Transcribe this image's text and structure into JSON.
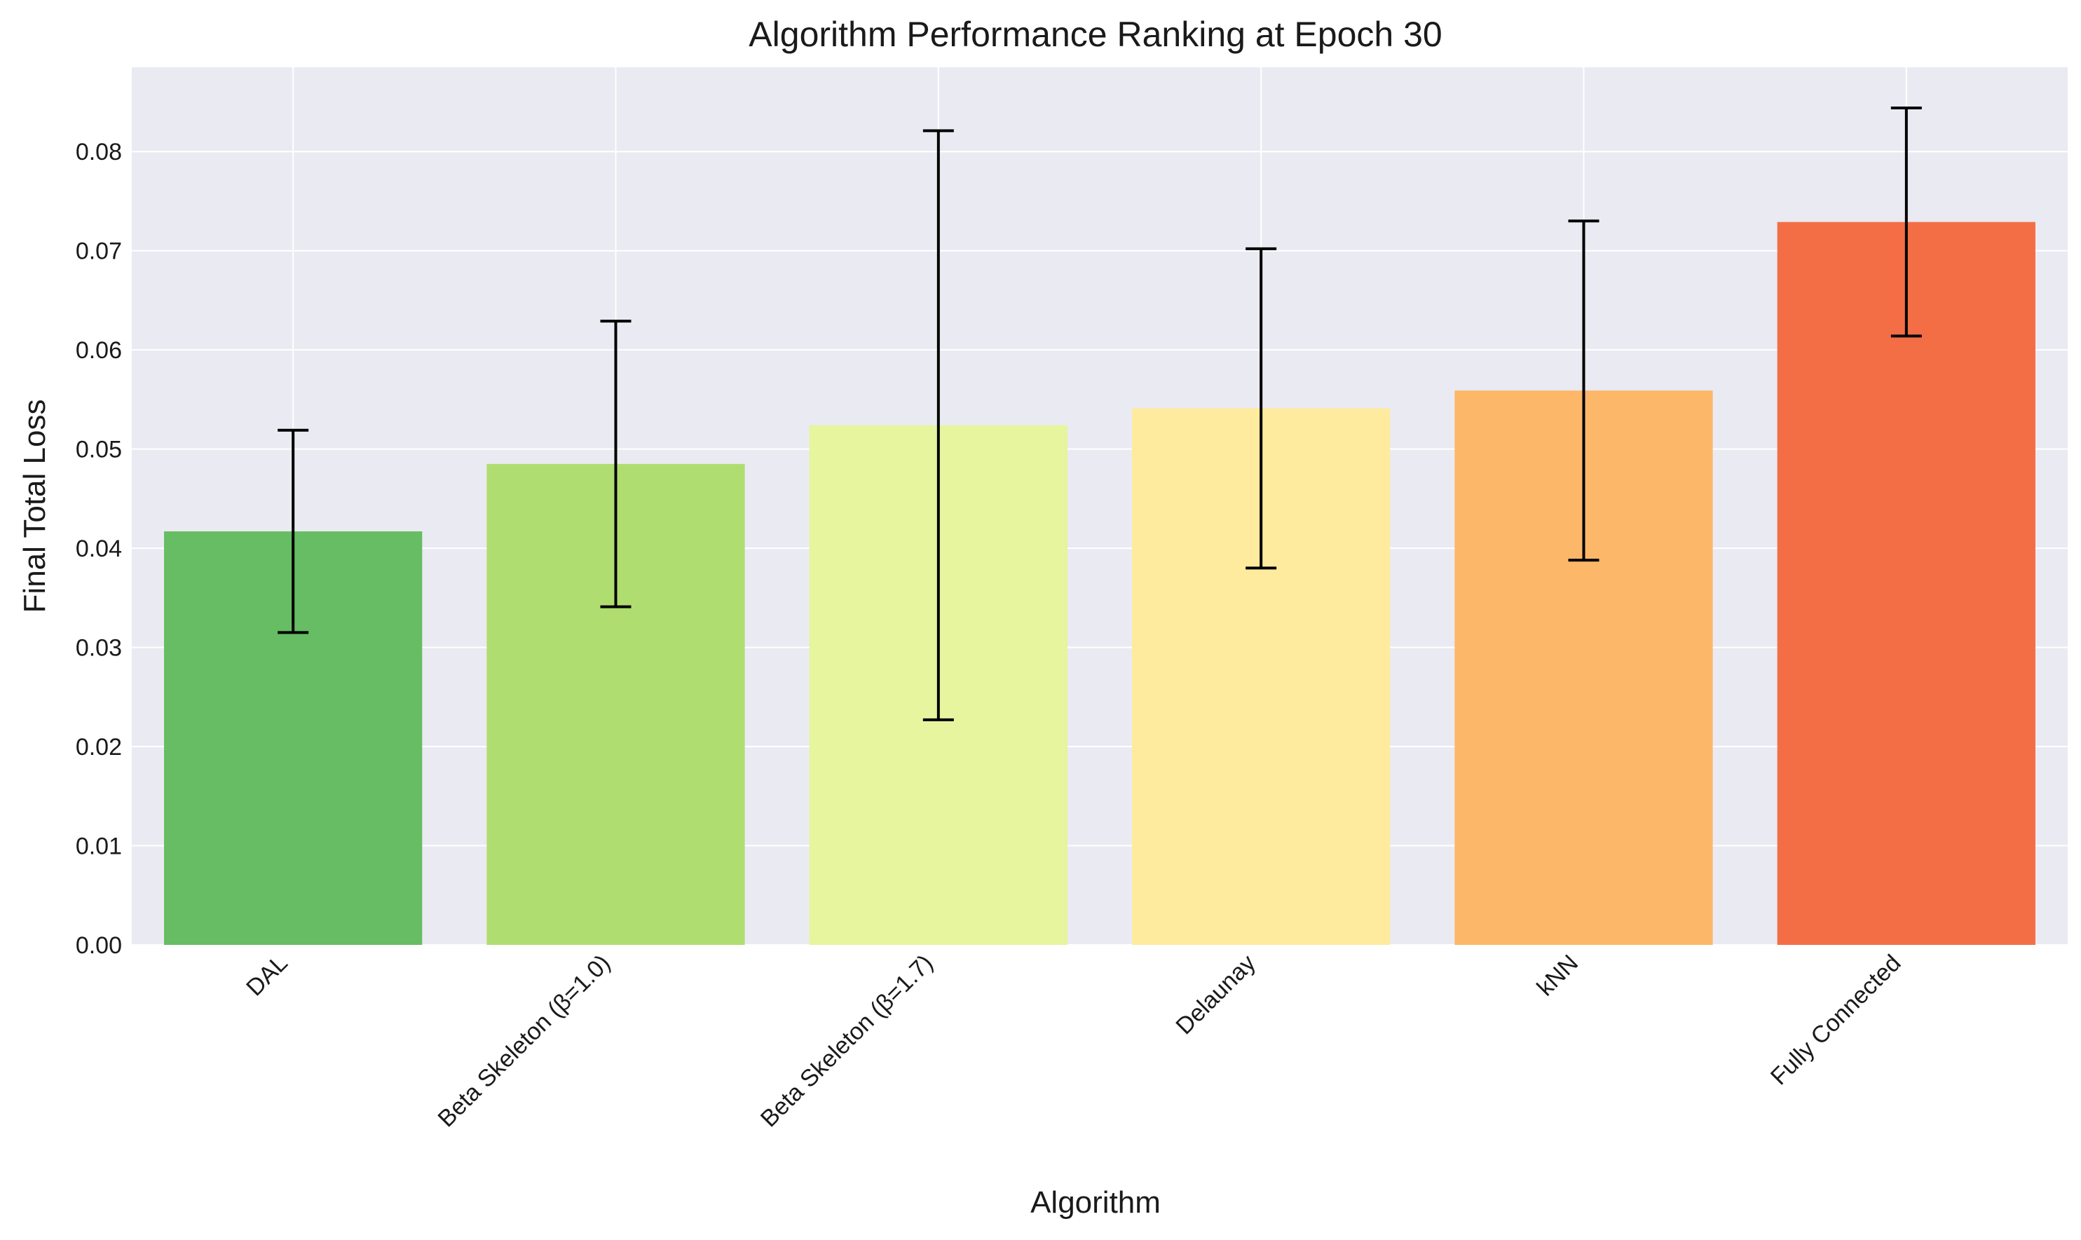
{
  "chart_data": {
    "type": "bar",
    "title": "Algorithm Performance Ranking at Epoch 30",
    "xlabel": "Algorithm",
    "ylabel": "Final Total Loss",
    "categories": [
      "DAL",
      "Beta Skeleton (β=1.0)",
      "Beta Skeleton (β=1.7)",
      "Delaunay",
      "kNN",
      "Fully Connected"
    ],
    "values": [
      0.0417,
      0.0485,
      0.0524,
      0.0541,
      0.0559,
      0.0729
    ],
    "error": [
      0.0102,
      0.0144,
      0.0297,
      0.0161,
      0.0171,
      0.0115
    ],
    "colors": [
      "#66bd63",
      "#b0dd70",
      "#e6f59e",
      "#feeb9d",
      "#fdb768",
      "#f46e45"
    ],
    "ylim": [
      0,
      0.0885
    ],
    "yticks": [
      0.0,
      0.01,
      0.02,
      0.03,
      0.04,
      0.05,
      0.06,
      0.07,
      0.08
    ],
    "ytick_labels": [
      "0.00",
      "0.01",
      "0.02",
      "0.03",
      "0.04",
      "0.05",
      "0.06",
      "0.07",
      "0.08"
    ],
    "grid": true,
    "background": "#eaeaf2",
    "errorbar_color": "#000000",
    "xtick_rotation": "45deg"
  }
}
